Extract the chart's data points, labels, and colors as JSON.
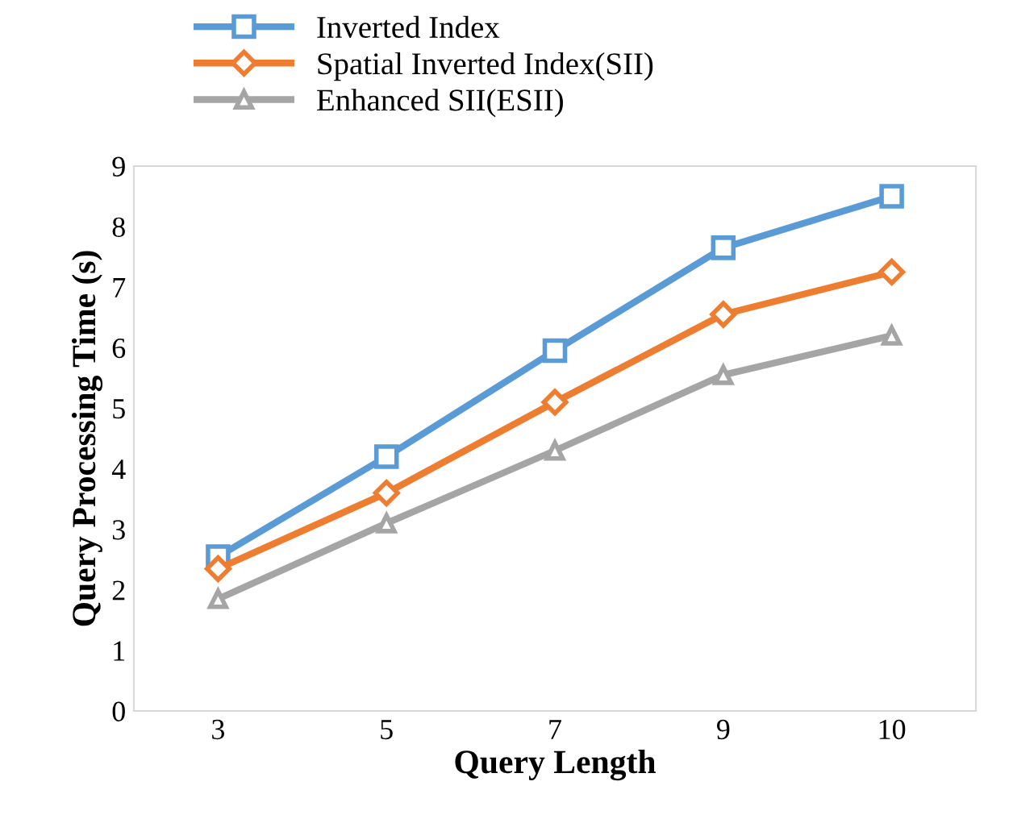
{
  "chart_data": {
    "type": "line",
    "xlabel": "Query Length",
    "ylabel": "Query Processing Time (s)",
    "categories": [
      "3",
      "5",
      "7",
      "9",
      "10"
    ],
    "series": [
      {
        "name": "Inverted Index",
        "color": "#5b9bd5",
        "marker": "square",
        "values": [
          2.55,
          4.2,
          5.95,
          7.65,
          8.5
        ]
      },
      {
        "name": "Spatial Inverted Index(SII)",
        "color": "#ed7d31",
        "marker": "diamond",
        "values": [
          2.35,
          3.6,
          5.1,
          6.55,
          7.25
        ]
      },
      {
        "name": "Enhanced SII(ESII)",
        "color": "#a5a5a5",
        "marker": "triangle",
        "values": [
          1.85,
          3.1,
          4.3,
          5.55,
          6.2
        ]
      }
    ],
    "ylim": [
      0,
      9
    ],
    "yticks": [
      0,
      1,
      2,
      3,
      4,
      5,
      6,
      7,
      8,
      9
    ],
    "grid": false,
    "legend": "top",
    "line_style": "solid"
  }
}
